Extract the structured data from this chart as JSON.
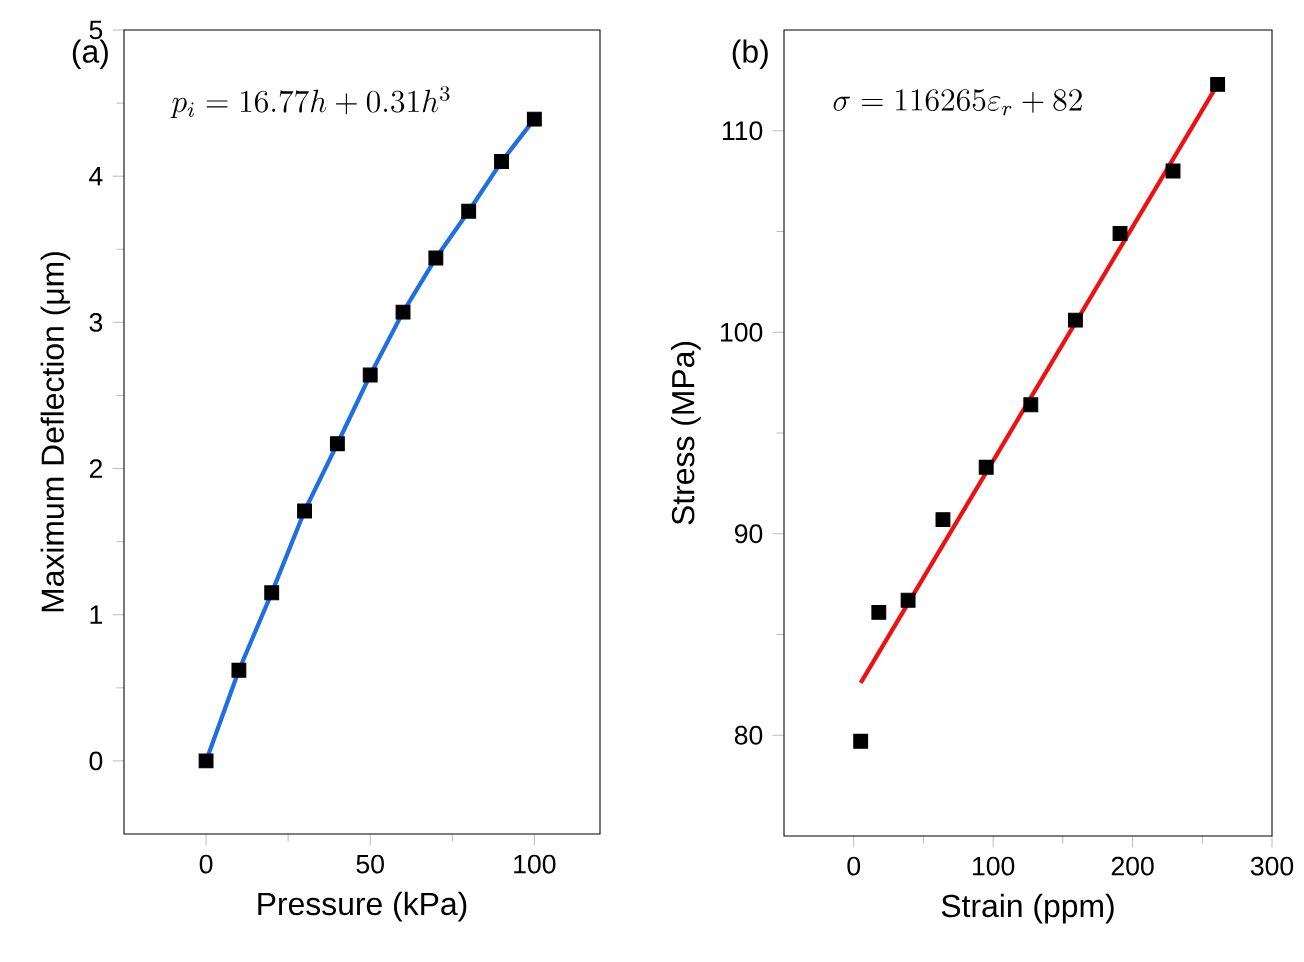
{
  "chart_data": [
    {
      "type": "scatter",
      "title": "(a)",
      "xlabel": "Pressure (kPa)",
      "ylabel": "Maximum Deflection (μm)",
      "annotations": [
        "p_{i}=16.77h+0.31h^{3}"
      ],
      "xlim": [
        -25,
        120
      ],
      "xticks": [
        0,
        50,
        100
      ],
      "ylim": [
        -0.5,
        5
      ],
      "yticks": [
        0,
        1,
        2,
        3,
        4,
        5
      ],
      "series": [
        {
          "color": "#000000",
          "marker": "square",
          "x": [
            0,
            10,
            20,
            30,
            40,
            50,
            60,
            70,
            80,
            90,
            100
          ],
          "values": [
            0,
            0.62,
            1.15,
            1.71,
            2.17,
            2.64,
            3.07,
            3.44,
            3.76,
            4.1,
            4.39
          ]
        },
        {
          "type": "line",
          "color": "#1f6fe0",
          "marker": "none",
          "x": [
            0,
            10,
            20,
            30,
            40,
            50,
            60,
            70,
            80,
            90,
            100
          ],
          "values": [
            0,
            0.62,
            1.15,
            1.71,
            2.17,
            2.64,
            3.07,
            3.44,
            3.76,
            4.1,
            4.39
          ]
        }
      ]
    },
    {
      "type": "scatter",
      "title": "(b)",
      "xlabel": "Strain (ppm)",
      "ylabel": "Stress (MPa)",
      "annotations": [
        "\\sigma=116265\\varepsilon_{r}+82"
      ],
      "xlim": [
        -50,
        300
      ],
      "xticks": [
        0,
        100,
        200,
        300
      ],
      "ylim": [
        75,
        115
      ],
      "yticks": [
        80,
        90,
        100,
        110
      ],
      "series": [
        {
          "color": "#000000",
          "marker": "square",
          "x": [
            5,
            18,
            39,
            64,
            95,
            127,
            159,
            191,
            229,
            261
          ],
          "values": [
            79.7,
            86.1,
            86.7,
            90.7,
            93.3,
            96.4,
            100.6,
            104.9,
            108,
            112.3
          ]
        },
        {
          "type": "line",
          "color": "#ee1111",
          "marker": "none",
          "x": [
            5,
            261
          ],
          "values": [
            82.6,
            112.3
          ]
        }
      ]
    }
  ]
}
